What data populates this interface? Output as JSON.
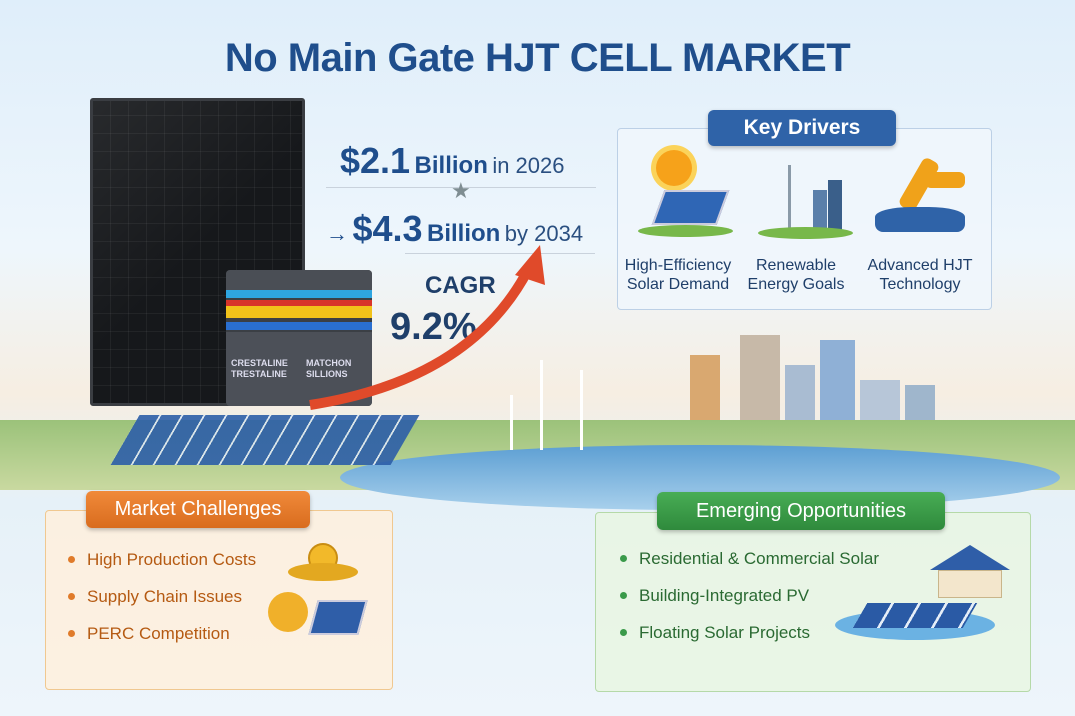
{
  "title": "No Main Gate HJT CELL MARKET",
  "cube": {
    "left_label": "CRESTALINE TRESTALINE",
    "right_label": "MATCHON SILLIONS"
  },
  "stats": {
    "value_2026": "$2.1",
    "value_2026_unit": "Billion",
    "value_2026_suffix": "in 2026",
    "arrow": "→",
    "value_2034": "$4.3",
    "value_2034_unit": "Billion",
    "value_2034_suffix": "by 2034",
    "cagr_label": "CAGR",
    "cagr_value": "9.2%"
  },
  "key_drivers": {
    "title": "Key Drivers",
    "items": [
      {
        "label": "High-Efficiency Solar Demand",
        "icon": "sun-solar-panel-icon"
      },
      {
        "label": "Renewable Energy Goals",
        "icon": "wind-turbine-city-icon"
      },
      {
        "label": "Advanced HJT Technology",
        "icon": "robot-arm-icon"
      }
    ]
  },
  "challenges": {
    "title": "Market Challenges",
    "items": [
      "High Production Costs",
      "Supply Chain Issues",
      "PERC Competition"
    ]
  },
  "opportunities": {
    "title": "Emerging Opportunities",
    "items": [
      "Residential & Commercial Solar",
      "Building-Integrated PV",
      "Floating Solar Projects"
    ]
  },
  "colors": {
    "title": "#1f4e8c",
    "drivers": "#2f63a8",
    "challenges": "#e07b2a",
    "opportunities": "#3a9a4a",
    "growth_arrow": "#e04a2a"
  }
}
